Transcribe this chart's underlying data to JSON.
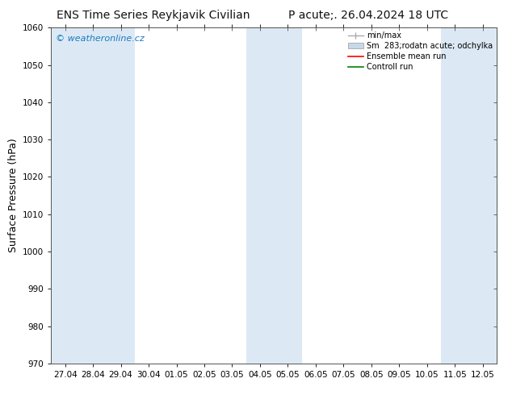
{
  "title_left": "ENS Time Series Reykjavik Civilian",
  "title_right": "P acute;. 26.04.2024 18 UTC",
  "ylabel": "Surface Pressure (hPa)",
  "ymin": 970,
  "ymax": 1060,
  "ytick_step": 10,
  "x_labels": [
    "27.04",
    "28.04",
    "29.04",
    "30.04",
    "01.05",
    "02.05",
    "03.05",
    "04.05",
    "05.05",
    "06.05",
    "07.05",
    "08.05",
    "09.05",
    "10.05",
    "11.05",
    "12.05"
  ],
  "shaded_indices": [
    0,
    1,
    2,
    7,
    8,
    14,
    15
  ],
  "shade_color": "#dce9f5",
  "background_color": "#ffffff",
  "watermark": "© weatheronline.cz",
  "watermark_color": "#1a7abf",
  "legend_label_minmax": "min/max",
  "legend_label_sm": "Sm  283;rodatn acute; odchylka",
  "legend_label_ensemble": "Ensemble mean run",
  "legend_label_control": "Controll run",
  "legend_color_minmax": "#aaaaaa",
  "legend_color_sm": "#c8d8e8",
  "legend_color_ensemble": "red",
  "legend_color_control": "green",
  "title_fontsize": 10,
  "axis_label_fontsize": 9,
  "tick_fontsize": 7.5,
  "legend_fontsize": 7,
  "watermark_fontsize": 8
}
